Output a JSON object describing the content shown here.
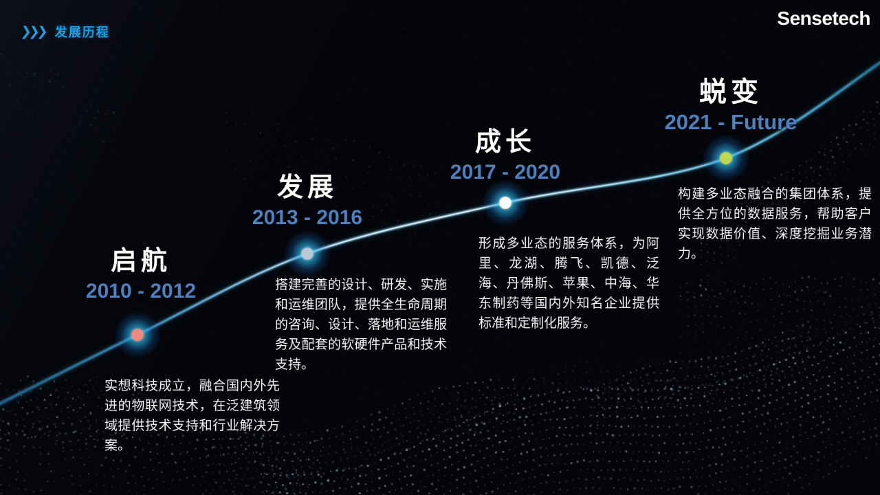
{
  "header": {
    "icon_glyph": "❯❯❯",
    "title": "发展历程"
  },
  "logo": {
    "text": "Sensetech"
  },
  "colors": {
    "accent_blue": "#1b9fe8",
    "year_blue": "#4d80bf",
    "title_white": "#ffffff",
    "line_cyan": "#bfe9fa",
    "dot_glow": "#2bb7ef",
    "dot1_core": "#f0897c",
    "dot2_core": "#b9c9d6",
    "dot3_core": "#f6fcff",
    "dot4_core": "#bfd94e",
    "background": "#04050a"
  },
  "milestones": [
    {
      "title": "启航",
      "period": "2010 - 2012",
      "description": "实想科技成立，融合国内外先进的物联网技术，在泛建筑领域提供技术支持和行业解决方案。"
    },
    {
      "title": "发展",
      "period": "2013 - 2016",
      "description": "搭建完善的设计、研发、实施和运维团队，提供全生命周期的咨询、设计、落地和运维服务及配套的软硬件产品和技术支持。"
    },
    {
      "title": "成长",
      "period": "2017 - 2020",
      "description": "形成多业态的服务体系，为阿里、龙湖、腾飞、凯德、泛海、丹佛斯、苹果、中海、华东制药等国内外知名企业提供标准和定制化服务。"
    },
    {
      "title": "蜕变",
      "period": "2021 - Future",
      "description": "构建多业态融合的集团体系，提供全方位的数据服务，帮助客户实现数据价值、深度挖掘业务潜力。"
    }
  ]
}
